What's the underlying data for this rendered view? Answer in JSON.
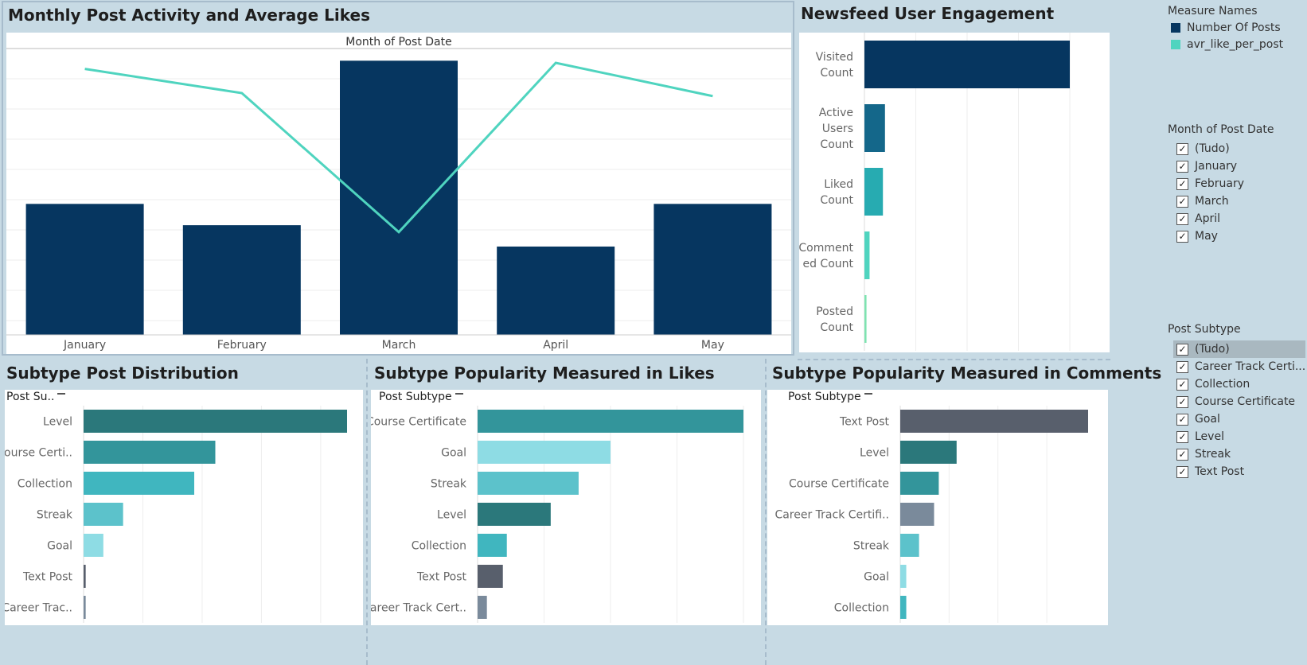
{
  "dashboard": {
    "panel_titles": {
      "monthly": "Monthly Post Activity and Average Likes",
      "engagement": "Newsfeed User Engagement",
      "distribution": "Subtype Post Distribution",
      "likes": "Subtype Popularity Measured in Likes",
      "comments": "Subtype Popularity Measured in Comments"
    }
  },
  "legend": {
    "title": "Measure Names",
    "items": [
      {
        "label": "Number Of Posts",
        "color": "#063660"
      },
      {
        "label": "avr_like_per_post",
        "color": "#4fd4bf"
      }
    ]
  },
  "filters": {
    "month": {
      "title": "Month of Post Date",
      "items": [
        "(Tudo)",
        "January",
        "February",
        "March",
        "April",
        "May"
      ]
    },
    "subtype": {
      "title": "Post Subtype",
      "items": [
        "(Tudo)",
        "Career Track Certi...",
        "Collection",
        "Course Certificate",
        "Goal",
        "Level",
        "Streak",
        "Text Post"
      ]
    }
  },
  "chart_data": [
    {
      "id": "monthly",
      "type": "bar+line",
      "title": "Monthly Post Activity and Average Likes",
      "header": "Month of Post Date",
      "categories": [
        "January",
        "February",
        "March",
        "April",
        "May"
      ],
      "series": [
        {
          "name": "Number Of Posts",
          "type": "bar",
          "color": "#063660",
          "values": [
            43,
            36,
            90,
            29,
            43
          ]
        },
        {
          "name": "avr_like_per_post",
          "type": "line",
          "color": "#4fd4bf",
          "values": [
            88,
            80,
            34,
            90,
            79
          ]
        }
      ],
      "grid": true
    },
    {
      "id": "engagement",
      "type": "bar",
      "orientation": "horizontal",
      "title": "Newsfeed User Engagement",
      "categories": [
        "Visited\nCount",
        "Active\nUsers\nCount",
        "Liked\nCount",
        "Comment\ned Count",
        "Posted\nCount"
      ],
      "values": [
        100,
        10,
        9,
        2.5,
        1
      ],
      "colors": [
        "#063660",
        "#14678a",
        "#27abb1",
        "#4fd4bf",
        "#7fe3b1"
      ],
      "grid": true
    },
    {
      "id": "distribution",
      "type": "bar",
      "orientation": "horizontal",
      "title": "Subtype Post Distribution",
      "header": "Post Su..",
      "categories": [
        "Level",
        "Course Certi..",
        "Collection",
        "Streak",
        "Goal",
        "Text Post",
        "Career Trac.."
      ],
      "values": [
        100,
        50,
        42,
        15,
        7.5,
        0.8,
        0.8
      ],
      "colors": [
        "#2b787b",
        "#33959b",
        "#40b6bf",
        "#5cc2cb",
        "#8edce4",
        "#585f6c",
        "#7a8a9b"
      ],
      "grid": true
    },
    {
      "id": "likes",
      "type": "bar",
      "orientation": "horizontal",
      "title": "Subtype Popularity Measured in Likes",
      "header": "Post Subtype",
      "categories": [
        "Course Certificate",
        "Goal",
        "Streak",
        "Level",
        "Collection",
        "Text Post",
        "Career Track Cert.."
      ],
      "values": [
        100,
        50,
        38,
        27.5,
        11,
        9.5,
        3.5
      ],
      "colors": [
        "#33959b",
        "#8edce4",
        "#5cc2cb",
        "#2b787b",
        "#40b6bf",
        "#585f6c",
        "#7a8a9b"
      ],
      "grid": true
    },
    {
      "id": "comments",
      "type": "bar",
      "orientation": "horizontal",
      "title": "Subtype Popularity Measured in Comments",
      "header": "Post Subtype",
      "categories": [
        "Text Post",
        "Level",
        "Course Certificate",
        "Career Track Certifi..",
        "Streak",
        "Goal",
        "Collection"
      ],
      "values": [
        100,
        30,
        20.5,
        18,
        10,
        3.2,
        3.2
      ],
      "colors": [
        "#585f6c",
        "#2b787b",
        "#33959b",
        "#7a8a9b",
        "#5cc2cb",
        "#8edce4",
        "#40b6bf"
      ],
      "grid": true
    }
  ]
}
